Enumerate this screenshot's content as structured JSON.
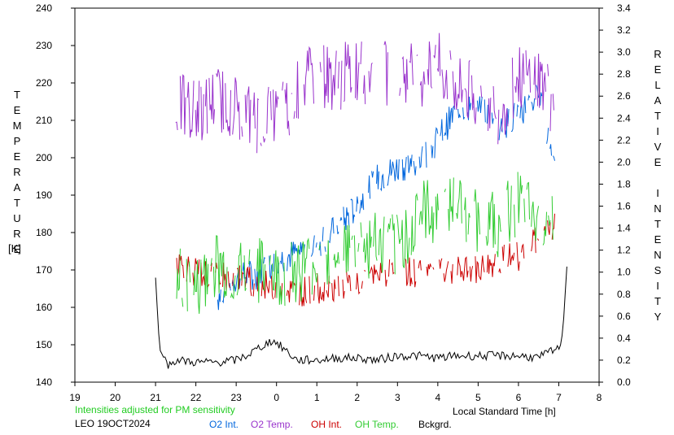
{
  "chart_data": {
    "type": "line",
    "title": "",
    "station_date": "LEO 19OCT2024",
    "subtitle_note": "Intensities adjusted for PM sensitivity",
    "xlabel": "Local Standard Time [h]",
    "ylabel_left": "TEMPERATURE [K]",
    "ylabel_left_letters": [
      "T",
      "E",
      "M",
      "P",
      "E",
      "R",
      "A",
      "T",
      "U",
      "R",
      "E"
    ],
    "ylabel_left_unit": "[K]",
    "ylabel_right": "RELATIVE INTENSITY",
    "ylabel_right_letters": [
      "R",
      "E",
      "L",
      "A",
      "T",
      "I",
      "V",
      "E",
      "",
      "I",
      "N",
      "T",
      "E",
      "N",
      "S",
      "I",
      "T",
      "Y"
    ],
    "x_ticks": [
      "19",
      "20",
      "21",
      "22",
      "23",
      "0",
      "1",
      "2",
      "3",
      "4",
      "5",
      "6",
      "7",
      "8"
    ],
    "xlim": [
      19,
      32
    ],
    "ylim_left": [
      140,
      240
    ],
    "ylim_right": [
      0.0,
      3.4
    ],
    "y_ticks_left": [
      "140",
      "150",
      "160",
      "170",
      "180",
      "190",
      "200",
      "210",
      "220",
      "230",
      "240"
    ],
    "y_ticks_right": [
      "0.0",
      "0.2",
      "0.4",
      "0.6",
      "0.8",
      "1.0",
      "1.2",
      "1.4",
      "1.6",
      "1.8",
      "2.0",
      "2.2",
      "2.4",
      "2.6",
      "2.8",
      "3.0",
      "3.2",
      "3.4"
    ],
    "grid": false,
    "series": [
      {
        "name": "O2 Int.",
        "color": "#0066dd",
        "axis": "right",
        "x": [
          22.5,
          23.0,
          23.5,
          24.0,
          24.5,
          25.0,
          25.5,
          26.0,
          26.5,
          27.0,
          27.5,
          28.0,
          28.5,
          29.0,
          29.5,
          30.0,
          30.5,
          30.9
        ],
        "y": [
          0.75,
          0.95,
          0.98,
          1.1,
          1.18,
          1.25,
          1.4,
          1.6,
          1.85,
          1.95,
          2.0,
          2.2,
          2.5,
          2.5,
          2.3,
          2.45,
          2.6,
          2.0
        ]
      },
      {
        "name": "O2 Temp.",
        "color": "#9933cc",
        "axis": "left",
        "x": [
          21.5,
          22.0,
          22.5,
          23.0,
          23.5,
          24.0,
          24.5,
          25.0,
          25.5,
          26.0,
          26.5,
          27.0,
          27.5,
          28.0,
          28.5,
          29.0,
          29.5,
          30.0,
          30.5,
          30.9
        ],
        "y": [
          214,
          212,
          216,
          214,
          210,
          211,
          217,
          223,
          221,
          224,
          222,
          223,
          222,
          225,
          219,
          216,
          212,
          221,
          222,
          213
        ]
      },
      {
        "name": "OH Int.",
        "color": "#cc0000",
        "axis": "right",
        "x": [
          21.5,
          22.0,
          22.5,
          23.0,
          23.5,
          24.0,
          24.5,
          25.0,
          25.5,
          26.0,
          26.5,
          27.0,
          27.5,
          28.0,
          28.5,
          29.0,
          29.5,
          30.0,
          30.5,
          30.9
        ],
        "y": [
          1.1,
          1.0,
          0.95,
          0.95,
          0.9,
          0.85,
          0.82,
          0.85,
          0.88,
          0.9,
          0.95,
          1.0,
          1.0,
          1.02,
          1.0,
          1.02,
          1.1,
          1.15,
          1.3,
          1.4
        ]
      },
      {
        "name": "OH Temp.",
        "color": "#33cc33",
        "axis": "left",
        "x": [
          21.5,
          22.0,
          22.5,
          23.0,
          23.5,
          24.0,
          24.5,
          25.0,
          25.5,
          26.0,
          26.5,
          27.0,
          27.5,
          28.0,
          28.5,
          29.0,
          29.5,
          30.0,
          30.5,
          30.9
        ],
        "y": [
          168,
          164,
          172,
          168,
          170,
          168,
          170,
          172,
          176,
          175,
          177,
          176,
          185,
          186,
          187,
          183,
          182,
          188,
          181,
          187
        ]
      },
      {
        "name": "Bckgrd.",
        "color": "#000000",
        "axis": "right",
        "x": [
          21.0,
          21.1,
          21.3,
          21.5,
          22.0,
          22.5,
          23.0,
          23.3,
          23.6,
          23.9,
          24.2,
          24.5,
          25.0,
          25.5,
          26.0,
          26.5,
          27.0,
          27.5,
          28.0,
          28.5,
          29.0,
          29.5,
          30.0,
          30.5,
          30.8,
          31.0,
          31.1,
          31.2
        ],
        "y": [
          0.95,
          0.3,
          0.15,
          0.2,
          0.18,
          0.18,
          0.2,
          0.25,
          0.32,
          0.38,
          0.3,
          0.2,
          0.2,
          0.22,
          0.22,
          0.2,
          0.24,
          0.24,
          0.22,
          0.24,
          0.24,
          0.24,
          0.24,
          0.22,
          0.28,
          0.3,
          0.45,
          1.05
        ]
      }
    ]
  }
}
